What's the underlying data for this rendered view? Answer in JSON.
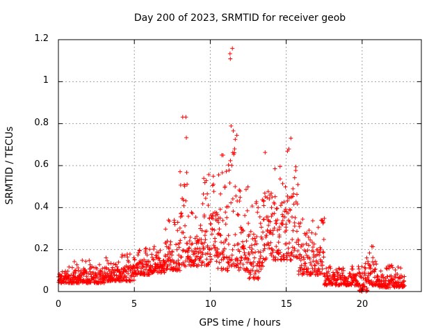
{
  "chart_data": {
    "type": "scatter",
    "title": "Day 200 of 2023, SRMTID for receiver geob",
    "xlabel": "GPS time / hours",
    "ylabel": "SRMTID / TECUs",
    "xlim": [
      0,
      23.9
    ],
    "ylim": [
      0,
      1.2
    ],
    "xticks": [
      0,
      5,
      10,
      15,
      20
    ],
    "xtick_labels": [
      "0",
      "5",
      "10",
      "15",
      "20"
    ],
    "yticks": [
      0,
      0.2,
      0.4,
      0.6,
      0.8,
      1,
      1.2
    ],
    "ytick_labels": [
      "0",
      "0.2",
      "0.4",
      "0.6",
      "0.8",
      "1",
      "1.2"
    ],
    "grid": true,
    "marker": "+",
    "color": "#ff0000",
    "x_step_hours": 0.0833,
    "series": [
      {
        "name": "geob",
        "clusters": [
          {
            "x": [
              0.0,
              1.0
            ],
            "y": [
              0.04,
              0.12
            ]
          },
          {
            "x": [
              1.0,
              2.0
            ],
            "y": [
              0.04,
              0.15
            ]
          },
          {
            "x": [
              2.0,
              3.0
            ],
            "y": [
              0.04,
              0.13
            ]
          },
          {
            "x": [
              3.0,
              4.0
            ],
            "y": [
              0.05,
              0.17
            ]
          },
          {
            "x": [
              4.0,
              5.0
            ],
            "y": [
              0.05,
              0.19
            ]
          },
          {
            "x": [
              5.0,
              6.0
            ],
            "y": [
              0.08,
              0.21
            ]
          },
          {
            "x": [
              6.0,
              7.0
            ],
            "y": [
              0.09,
              0.22
            ]
          },
          {
            "x": [
              7.0,
              8.0
            ],
            "y": [
              0.1,
              0.35
            ]
          },
          {
            "x": [
              8.0,
              8.5
            ],
            "y": [
              0.12,
              0.88
            ]
          },
          {
            "x": [
              8.5,
              9.5
            ],
            "y": [
              0.12,
              0.38
            ]
          },
          {
            "x": [
              9.5,
              10.5
            ],
            "y": [
              0.12,
              0.58
            ]
          },
          {
            "x": [
              10.5,
              11.2
            ],
            "y": [
              0.1,
              0.67
            ]
          },
          {
            "x": [
              11.2,
              11.8
            ],
            "y": [
              0.12,
              1.17
            ]
          },
          {
            "x": [
              11.8,
              12.5
            ],
            "y": [
              0.1,
              0.5
            ]
          },
          {
            "x": [
              12.5,
              13.5
            ],
            "y": [
              0.06,
              0.45
            ]
          },
          {
            "x": [
              13.5,
              14.0
            ],
            "y": [
              0.15,
              0.73
            ]
          },
          {
            "x": [
              14.0,
              15.0
            ],
            "y": [
              0.15,
              0.65
            ]
          },
          {
            "x": [
              15.0,
              15.8
            ],
            "y": [
              0.15,
              0.78
            ]
          },
          {
            "x": [
              15.8,
              17.5
            ],
            "y": [
              0.08,
              0.35
            ]
          },
          {
            "x": [
              17.5,
              19.8
            ],
            "y": [
              0.03,
              0.12
            ]
          },
          {
            "x": [
              19.8,
              20.4
            ],
            "y": [
              0.0,
              0.17
            ]
          },
          {
            "x": [
              20.4,
              21.0
            ],
            "y": [
              0.03,
              0.24
            ]
          },
          {
            "x": [
              21.0,
              22.8
            ],
            "y": [
              0.02,
              0.13
            ]
          }
        ]
      }
    ]
  }
}
